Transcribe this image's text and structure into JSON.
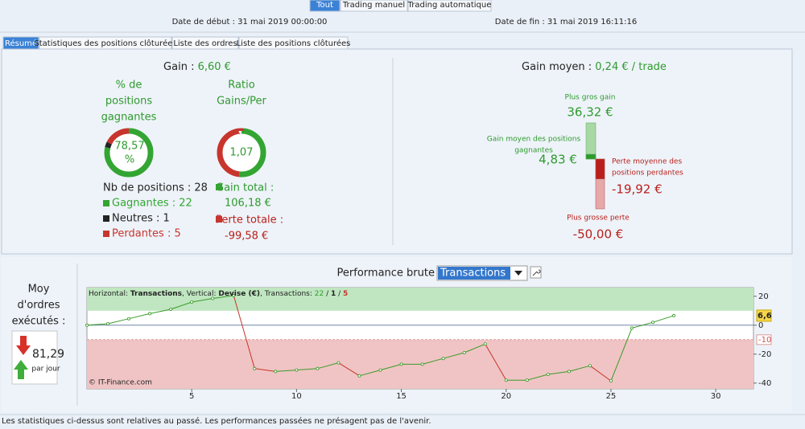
{
  "top_tabs": [
    "Tout",
    "Trading manuel",
    "Trading automatique"
  ],
  "selected_top_tab": 0,
  "dates": {
    "start": "Date de début : 31 mai 2019 00:00:00",
    "end": "Date de fin : 31 mai 2019 16:11:16"
  },
  "sub_tabs": [
    "Résumé",
    "Statistiques des positions clôturées",
    "Liste des ordres",
    "Liste des positions clôturées"
  ],
  "selected_sub_tab": 0,
  "summary": {
    "gain_label": "Gain :",
    "gain_value": "6,60 €",
    "win_pct_title": [
      "% de",
      "positions",
      "gagnantes"
    ],
    "win_pct": "78,57",
    "win_pct_unit": "%",
    "ratio_title": [
      "Ratio",
      "Gains/Per"
    ],
    "ratio": "1,07",
    "positions": "Nb de positions : 28",
    "outcomes": [
      {
        "label": "Gagnantes : 22",
        "value": 22,
        "color": "#33a532"
      },
      {
        "label": "Neutres : 1",
        "value": 1,
        "color": "#222222"
      },
      {
        "label": "Perdantes : 5",
        "value": 5,
        "color": "#c8352d"
      }
    ],
    "gain_total_label": "Gain total :",
    "gain_total": {
      "value": 106.18,
      "label": "106,18 €",
      "color": "#33a532"
    },
    "loss_total_label": "Perte totale :",
    "loss_total": {
      "value": -99.58,
      "label": "-99,58 €",
      "color": "#c8352d"
    }
  },
  "average": {
    "label": "Gain moyen :",
    "value": "0,24 € / trade",
    "bars": [
      {
        "name": [
          "Plus gros gain"
        ],
        "value": 36.32,
        "label": "36,32 €",
        "color": "#a8d8a4"
      },
      {
        "name": [
          "Gain moyen des positions",
          "gagnantes"
        ],
        "value": 4.83,
        "label": "4,83 €",
        "color": "#2e9a2e"
      },
      {
        "name": [
          "Perte moyenne des",
          "positions perdantes"
        ],
        "value": -19.92,
        "label": "-19,92 €",
        "color": "#b9201b"
      },
      {
        "name": [
          "Plus grosse perte"
        ],
        "value": -50,
        "label": "-50,00 €",
        "color": "#e6a8a8"
      }
    ]
  },
  "orders": {
    "title": [
      "Moy",
      "d'ordres",
      "exécutés :"
    ],
    "value": "81,29",
    "unit": "par jour"
  },
  "performance": {
    "title": "Performance brute",
    "dropdown": "Transactions"
  },
  "chart_data": {
    "type": "line",
    "info": [
      {
        "text": "Horizontal: ",
        "bold": false,
        "color": "#222"
      },
      {
        "text": "Transactions",
        "bold": true,
        "color": "#222"
      },
      {
        "text": ", Vertical: ",
        "bold": false,
        "color": "#222"
      },
      {
        "text": "Devise (€)",
        "bold": true,
        "color": "#222"
      },
      {
        "text": ", Transactions: ",
        "bold": false,
        "color": "#222"
      },
      {
        "text": "22",
        "bold": false,
        "color": "#2e9a2e"
      },
      {
        "text": " / ",
        "bold": false,
        "color": "#222"
      },
      {
        "text": "1",
        "bold": true,
        "color": "#222"
      },
      {
        "text": " / ",
        "bold": false,
        "color": "#222"
      },
      {
        "text": "5",
        "bold": true,
        "color": "#c8352d"
      }
    ],
    "credit": "© IT-Finance.com",
    "x": [
      0,
      1,
      2,
      3,
      4,
      5,
      6,
      7,
      8,
      9,
      10,
      11,
      12,
      13,
      14,
      15,
      16,
      17,
      18,
      19,
      20,
      21,
      22,
      23,
      24,
      25,
      26,
      27,
      28
    ],
    "values": [
      0,
      1,
      4.5,
      8,
      11,
      16,
      18.5,
      20.5,
      -30,
      -32,
      -31,
      -30,
      -26,
      -35,
      -31,
      -27,
      -27,
      -23,
      -19,
      -13,
      -38,
      -38,
      -34,
      -32,
      -28,
      -38.5,
      -2,
      2,
      6.6
    ],
    "up_color": "#3a9a2a",
    "down_color": "#c8352d",
    "xlim": [
      0,
      31.8
    ],
    "ylim": [
      -44,
      26
    ],
    "xticks": [
      5,
      10,
      15,
      20,
      25,
      30
    ],
    "yticks": [
      20,
      0,
      -20,
      -40
    ],
    "current": {
      "value": 6.6,
      "label": "6,6"
    },
    "loss_threshold": -10,
    "bands": [
      {
        "from": 10,
        "to": 26,
        "color": "#bfe6c0"
      },
      {
        "from": -10,
        "to": -44,
        "color": "#f0c4c4"
      }
    ]
  },
  "footer": "Les statistiques ci-dessus sont relatives au passé. Les performances passées ne présagent pas de l'avenir."
}
